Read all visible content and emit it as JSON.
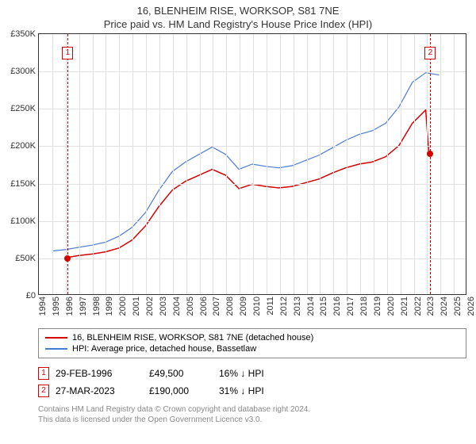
{
  "title1": "16, BLENHEIM RISE, WORKSOP, S81 7NE",
  "title2": "Price paid vs. HM Land Registry's House Price Index (HPI)",
  "chart": {
    "type": "line",
    "background_color": "#ffffff",
    "grid_color": "#e0e0e0",
    "border_color": "#333333",
    "xlim": [
      1994,
      2026
    ],
    "ylim": [
      0,
      350000
    ],
    "ytick_step": 50000,
    "yticks": [
      0,
      50000,
      100000,
      150000,
      200000,
      250000,
      300000,
      350000
    ],
    "ytick_labels": [
      "£0",
      "£50K",
      "£100K",
      "£150K",
      "£200K",
      "£250K",
      "£300K",
      "£350K"
    ],
    "xticks": [
      1994,
      1995,
      1996,
      1997,
      1998,
      1999,
      2000,
      2001,
      2002,
      2003,
      2004,
      2005,
      2006,
      2007,
      2008,
      2009,
      2010,
      2011,
      2012,
      2013,
      2014,
      2015,
      2016,
      2017,
      2018,
      2019,
      2020,
      2021,
      2022,
      2023,
      2024,
      2025,
      2026
    ],
    "xtick_labels": [
      "1994",
      "1995",
      "1996",
      "1997",
      "1998",
      "1999",
      "2000",
      "2001",
      "2002",
      "2003",
      "2004",
      "2005",
      "2006",
      "2007",
      "2008",
      "2009",
      "2010",
      "2011",
      "2012",
      "2013",
      "2014",
      "2015",
      "2016",
      "2017",
      "2018",
      "2019",
      "2020",
      "2021",
      "2022",
      "2023",
      "2024",
      "2025",
      "2026"
    ],
    "label_fontsize": 11,
    "series": [
      {
        "name": "16, BLENHEIM RISE, WORKSOP, S81 7NE (detached house)",
        "color": "#d40000",
        "line_width": 1.5,
        "data": [
          [
            1996.16,
            49500
          ],
          [
            1997,
            52000
          ],
          [
            1998,
            54000
          ],
          [
            1999,
            57000
          ],
          [
            2000,
            62000
          ],
          [
            2001,
            73000
          ],
          [
            2002,
            92000
          ],
          [
            2003,
            118000
          ],
          [
            2004,
            140000
          ],
          [
            2005,
            152000
          ],
          [
            2006,
            160000
          ],
          [
            2007,
            168000
          ],
          [
            2008,
            160000
          ],
          [
            2009,
            142000
          ],
          [
            2010,
            148000
          ],
          [
            2011,
            145000
          ],
          [
            2012,
            143000
          ],
          [
            2013,
            145000
          ],
          [
            2014,
            150000
          ],
          [
            2015,
            155000
          ],
          [
            2016,
            163000
          ],
          [
            2017,
            170000
          ],
          [
            2018,
            175000
          ],
          [
            2019,
            178000
          ],
          [
            2020,
            185000
          ],
          [
            2021,
            200000
          ],
          [
            2022,
            230000
          ],
          [
            2023.0,
            248000
          ],
          [
            2023.24,
            190000
          ]
        ]
      },
      {
        "name": "HPI: Average price, detached house, Bassetlaw",
        "color": "#4a7bd4",
        "line_width": 1.2,
        "data": [
          [
            1995,
            58000
          ],
          [
            1996,
            60000
          ],
          [
            1997,
            63000
          ],
          [
            1998,
            66000
          ],
          [
            1999,
            70000
          ],
          [
            2000,
            78000
          ],
          [
            2001,
            90000
          ],
          [
            2002,
            110000
          ],
          [
            2003,
            140000
          ],
          [
            2004,
            165000
          ],
          [
            2005,
            178000
          ],
          [
            2006,
            188000
          ],
          [
            2007,
            198000
          ],
          [
            2008,
            188000
          ],
          [
            2009,
            168000
          ],
          [
            2010,
            175000
          ],
          [
            2011,
            172000
          ],
          [
            2012,
            170000
          ],
          [
            2013,
            173000
          ],
          [
            2014,
            180000
          ],
          [
            2015,
            187000
          ],
          [
            2016,
            197000
          ],
          [
            2017,
            207000
          ],
          [
            2018,
            215000
          ],
          [
            2019,
            220000
          ],
          [
            2020,
            230000
          ],
          [
            2021,
            252000
          ],
          [
            2022,
            285000
          ],
          [
            2023,
            298000
          ],
          [
            2024,
            295000
          ]
        ]
      }
    ],
    "vlines": [
      {
        "x": 1996.16,
        "color": "#d40000"
      },
      {
        "x": 2023.24,
        "color": "#d40000"
      }
    ],
    "markers": [
      {
        "n": "1",
        "x": 1996.16,
        "y_box": 325000,
        "dot_y": 49500,
        "color": "#d40000"
      },
      {
        "n": "2",
        "x": 2023.24,
        "y_box": 325000,
        "dot_y": 190000,
        "color": "#d40000"
      }
    ]
  },
  "legend": {
    "items": [
      {
        "label": "16, BLENHEIM RISE, WORKSOP, S81 7NE (detached house)",
        "color": "#d40000"
      },
      {
        "label": "HPI: Average price, detached house, Bassetlaw",
        "color": "#4a7bd4"
      }
    ]
  },
  "transactions": [
    {
      "n": "1",
      "color": "#d40000",
      "date": "29-FEB-1996",
      "price": "£49,500",
      "pct": "16% ↓ HPI"
    },
    {
      "n": "2",
      "color": "#d40000",
      "date": "27-MAR-2023",
      "price": "£190,000",
      "pct": "31% ↓ HPI"
    }
  ],
  "footer": {
    "line1": "Contains HM Land Registry data © Crown copyright and database right 2024.",
    "line2": "This data is licensed under the Open Government Licence v3.0."
  }
}
